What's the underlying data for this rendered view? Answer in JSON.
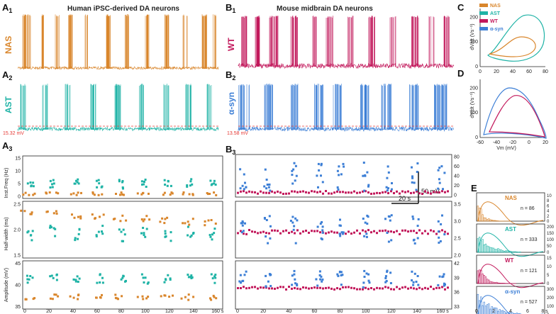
{
  "colors": {
    "nas": "#d9862c",
    "ast": "#1fb3a6",
    "wt": "#c2185b",
    "asyn": "#3d7fd6",
    "ref": "#e53935",
    "axis": "#222222"
  },
  "panels": {
    "a1": "A",
    "a1_sub": "1",
    "a2": "A",
    "a2_sub": "2",
    "a3": "A",
    "a3_sub": "3",
    "b1": "B",
    "b1_sub": "1",
    "b2": "B",
    "b2_sub": "2",
    "b3": "B",
    "b3_sub": "3",
    "c": "C",
    "d": "D",
    "e": "E"
  },
  "titles": {
    "human": "Human iPSC-derived DA neurons",
    "mouse": "Mouse midbrain DA neurons"
  },
  "trace_labels": {
    "nas": "NAS",
    "ast": "AST",
    "wt": "WT",
    "asyn": "α-syn"
  },
  "thresholds": {
    "a2": "15.32 mV",
    "b2": "13.58 mV"
  },
  "scalebar": {
    "v": "50 mV",
    "t": "20 s"
  },
  "legend_c": [
    "NAS",
    "AST",
    "WT",
    "α-syn"
  ],
  "chart_data": [
    {
      "type": "line",
      "id": "C",
      "ylabel": "dV/dt (Vs⁻¹)",
      "x_ticks": [
        "0",
        "20",
        "40",
        "60",
        "80"
      ],
      "y_ticks": [
        "0",
        "100",
        "200"
      ],
      "series": [
        "NAS",
        "AST"
      ]
    },
    {
      "type": "line",
      "id": "D",
      "xlabel": "Vm (mV)",
      "ylabel": "dV/dt (Vs⁻¹)",
      "x_ticks": [
        "-60",
        "-40",
        "-20",
        "0",
        "20"
      ],
      "y_ticks": [
        "0",
        "100",
        "200"
      ],
      "series": [
        "WT",
        "α-syn"
      ]
    },
    {
      "type": "scatter",
      "id": "A3",
      "ylabels": [
        "Inst.Freq (Hz)",
        "Half-width (ms)",
        "Amplitude (mV)"
      ],
      "y_ticks": {
        "freq": [
          "0",
          "5",
          "10",
          "15"
        ],
        "hw": [
          "1.5",
          "2.0",
          "2.5"
        ],
        "amp": [
          "35",
          "40",
          "45"
        ]
      },
      "x_ticks": [
        "0",
        "20",
        "40",
        "60",
        "80",
        "100",
        "120",
        "140",
        "160 s"
      ],
      "series": [
        "NAS",
        "AST"
      ]
    },
    {
      "type": "scatter",
      "id": "B3",
      "y_ticks": {
        "freq": [
          "0",
          "20",
          "40",
          "60",
          "80"
        ],
        "hw": [
          "2.0",
          "2.5",
          "3.0",
          "3.5"
        ],
        "amp": [
          "33",
          "36",
          "39",
          "42"
        ]
      },
      "x_ticks": [
        "0",
        "20",
        "40",
        "60",
        "80",
        "100",
        "120",
        "140",
        "160 s"
      ],
      "series": [
        "WT",
        "α-syn"
      ]
    },
    {
      "type": "bar",
      "id": "E",
      "x_ticks": [
        "0",
        "2",
        "4",
        "6",
        "8 s"
      ],
      "rows": [
        {
          "name": "NAS",
          "n": "n = 86",
          "right_ticks": [
            "0",
            "2",
            "4",
            "6",
            "8",
            "10"
          ]
        },
        {
          "name": "AST",
          "n": "n = 333",
          "right_ticks": [
            "0",
            "50",
            "100",
            "150",
            "200"
          ]
        },
        {
          "name": "WT",
          "n": "n = 121",
          "right_ticks": [
            "0",
            "5",
            "10",
            "15"
          ]
        },
        {
          "name": "α-syn",
          "n": "n = 527",
          "right_ticks": [
            "0",
            "100",
            "200",
            "300"
          ]
        }
      ]
    }
  ]
}
